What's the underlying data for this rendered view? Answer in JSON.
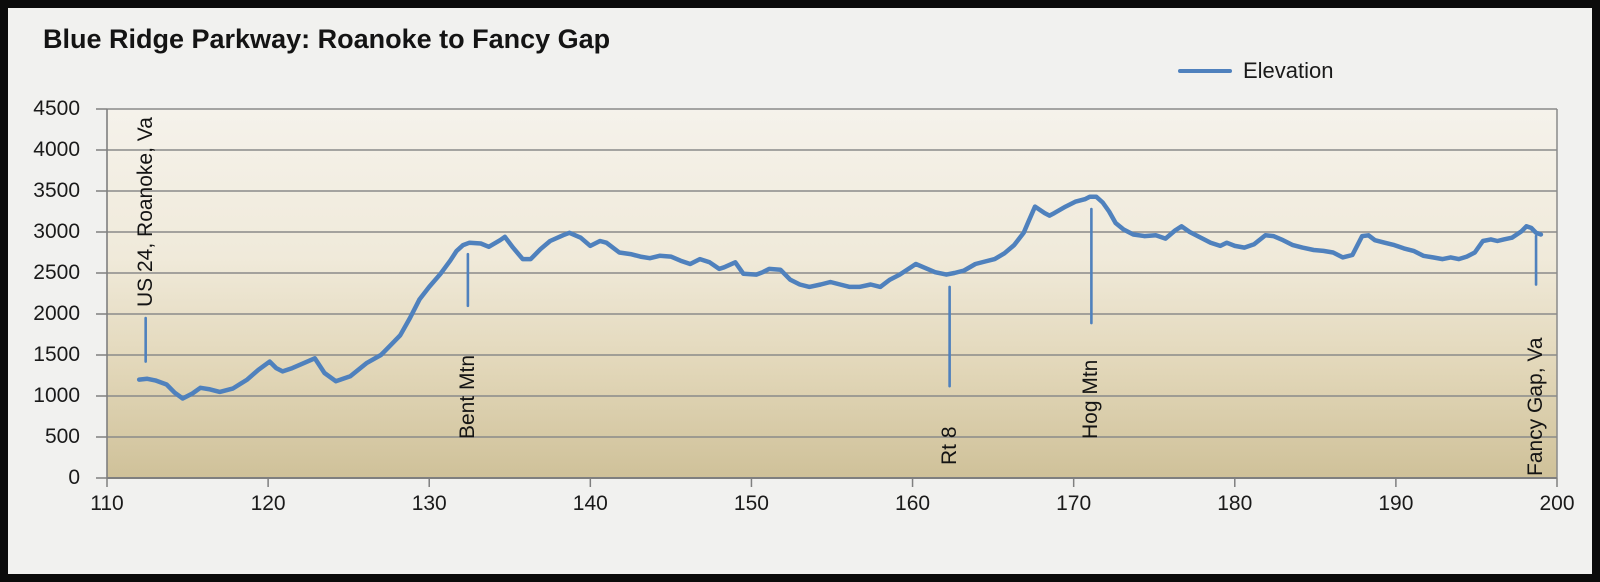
{
  "window": {
    "title": "Blue Ridge Parkway: Roanoke to Fancy Gap"
  },
  "legend": {
    "label": "Elevation"
  },
  "chart_data": {
    "type": "line",
    "title": "Blue Ridge Parkway: Roanoke to Fancy Gap",
    "xlabel": "",
    "ylabel": "",
    "xlim": [
      110,
      200
    ],
    "ylim": [
      0,
      4500
    ],
    "x_ticks": [
      110,
      120,
      130,
      140,
      150,
      160,
      170,
      180,
      190,
      200
    ],
    "y_ticks": [
      0,
      500,
      1000,
      1500,
      2000,
      2500,
      3000,
      3500,
      4000,
      4500
    ],
    "grid": "horizontal",
    "legend": {
      "entries": [
        "Elevation"
      ],
      "position": "top-right"
    },
    "series": [
      {
        "name": "Elevation",
        "color": "#4F81BD",
        "points": [
          [
            112.0,
            1200
          ],
          [
            112.5,
            1210
          ],
          [
            113.0,
            1190
          ],
          [
            113.7,
            1140
          ],
          [
            114.2,
            1040
          ],
          [
            114.7,
            970
          ],
          [
            115.3,
            1030
          ],
          [
            115.8,
            1100
          ],
          [
            116.4,
            1080
          ],
          [
            117.0,
            1050
          ],
          [
            117.8,
            1090
          ],
          [
            118.7,
            1200
          ],
          [
            119.4,
            1320
          ],
          [
            120.1,
            1420
          ],
          [
            120.5,
            1340
          ],
          [
            120.9,
            1300
          ],
          [
            121.5,
            1340
          ],
          [
            122.2,
            1400
          ],
          [
            122.9,
            1460
          ],
          [
            123.5,
            1280
          ],
          [
            124.2,
            1180
          ],
          [
            125.1,
            1240
          ],
          [
            126.1,
            1400
          ],
          [
            127.0,
            1500
          ],
          [
            127.6,
            1620
          ],
          [
            128.2,
            1740
          ],
          [
            128.8,
            1950
          ],
          [
            129.4,
            2180
          ],
          [
            130.0,
            2330
          ],
          [
            130.7,
            2490
          ],
          [
            131.3,
            2650
          ],
          [
            131.7,
            2770
          ],
          [
            132.1,
            2840
          ],
          [
            132.5,
            2870
          ],
          [
            133.2,
            2860
          ],
          [
            133.7,
            2820
          ],
          [
            134.4,
            2900
          ],
          [
            134.7,
            2940
          ],
          [
            135.2,
            2810
          ],
          [
            135.8,
            2670
          ],
          [
            136.3,
            2670
          ],
          [
            136.9,
            2790
          ],
          [
            137.5,
            2890
          ],
          [
            138.3,
            2960
          ],
          [
            138.7,
            2990
          ],
          [
            139.4,
            2930
          ],
          [
            140.0,
            2830
          ],
          [
            140.6,
            2890
          ],
          [
            141.0,
            2870
          ],
          [
            141.8,
            2750
          ],
          [
            142.5,
            2730
          ],
          [
            143.1,
            2700
          ],
          [
            143.7,
            2680
          ],
          [
            144.3,
            2710
          ],
          [
            145.0,
            2700
          ],
          [
            145.6,
            2650
          ],
          [
            146.2,
            2610
          ],
          [
            146.8,
            2670
          ],
          [
            147.4,
            2630
          ],
          [
            148.0,
            2550
          ],
          [
            148.3,
            2570
          ],
          [
            149.0,
            2630
          ],
          [
            149.5,
            2490
          ],
          [
            150.3,
            2480
          ],
          [
            150.7,
            2510
          ],
          [
            151.1,
            2550
          ],
          [
            151.8,
            2540
          ],
          [
            152.4,
            2420
          ],
          [
            153.0,
            2360
          ],
          [
            153.6,
            2330
          ],
          [
            154.3,
            2360
          ],
          [
            154.9,
            2390
          ],
          [
            155.5,
            2360
          ],
          [
            156.1,
            2330
          ],
          [
            156.7,
            2330
          ],
          [
            157.4,
            2360
          ],
          [
            158.0,
            2330
          ],
          [
            158.6,
            2420
          ],
          [
            159.2,
            2480
          ],
          [
            159.9,
            2570
          ],
          [
            160.2,
            2610
          ],
          [
            160.8,
            2560
          ],
          [
            161.4,
            2510
          ],
          [
            162.1,
            2480
          ],
          [
            162.6,
            2500
          ],
          [
            163.2,
            2530
          ],
          [
            163.9,
            2610
          ],
          [
            164.5,
            2640
          ],
          [
            165.1,
            2670
          ],
          [
            165.7,
            2740
          ],
          [
            166.3,
            2840
          ],
          [
            166.9,
            2990
          ],
          [
            167.2,
            3130
          ],
          [
            167.6,
            3310
          ],
          [
            168.2,
            3230
          ],
          [
            168.5,
            3200
          ],
          [
            168.8,
            3230
          ],
          [
            169.5,
            3310
          ],
          [
            170.1,
            3370
          ],
          [
            170.7,
            3400
          ],
          [
            171.0,
            3430
          ],
          [
            171.4,
            3430
          ],
          [
            171.8,
            3360
          ],
          [
            172.2,
            3250
          ],
          [
            172.6,
            3110
          ],
          [
            173.1,
            3030
          ],
          [
            173.7,
            2970
          ],
          [
            174.4,
            2950
          ],
          [
            175.1,
            2960
          ],
          [
            175.7,
            2920
          ],
          [
            176.3,
            3020
          ],
          [
            176.7,
            3070
          ],
          [
            177.2,
            3000
          ],
          [
            177.9,
            2930
          ],
          [
            178.5,
            2870
          ],
          [
            179.1,
            2830
          ],
          [
            179.5,
            2870
          ],
          [
            180.0,
            2830
          ],
          [
            180.6,
            2810
          ],
          [
            181.2,
            2850
          ],
          [
            181.9,
            2960
          ],
          [
            182.4,
            2950
          ],
          [
            183.0,
            2900
          ],
          [
            183.6,
            2840
          ],
          [
            184.2,
            2810
          ],
          [
            184.9,
            2780
          ],
          [
            185.5,
            2770
          ],
          [
            186.1,
            2750
          ],
          [
            186.7,
            2690
          ],
          [
            187.3,
            2720
          ],
          [
            187.9,
            2950
          ],
          [
            188.3,
            2960
          ],
          [
            188.7,
            2900
          ],
          [
            189.3,
            2870
          ],
          [
            189.9,
            2840
          ],
          [
            190.5,
            2800
          ],
          [
            191.1,
            2770
          ],
          [
            191.7,
            2710
          ],
          [
            192.3,
            2690
          ],
          [
            192.9,
            2670
          ],
          [
            193.4,
            2690
          ],
          [
            193.9,
            2670
          ],
          [
            194.4,
            2700
          ],
          [
            194.9,
            2750
          ],
          [
            195.4,
            2890
          ],
          [
            195.9,
            2910
          ],
          [
            196.3,
            2890
          ],
          [
            196.7,
            2910
          ],
          [
            197.2,
            2930
          ],
          [
            197.8,
            3010
          ],
          [
            198.1,
            3070
          ],
          [
            198.4,
            3050
          ],
          [
            198.7,
            2990
          ],
          [
            199.0,
            2970
          ]
        ]
      }
    ],
    "annotations": [
      {
        "label": "US 24, Roanoke, Va",
        "milepost": 112.4,
        "line_top_ft": 1950,
        "line_bottom_ft": 1420,
        "text_anchor_ft": 2080
      },
      {
        "label": "Bent Mtn",
        "milepost": 132.4,
        "line_top_ft": 2730,
        "line_bottom_ft": 2100,
        "text_anchor_ft": 480
      },
      {
        "label": "Rt 8",
        "milepost": 162.3,
        "line_top_ft": 2330,
        "line_bottom_ft": 1120,
        "text_anchor_ft": 160
      },
      {
        "label": "Hog Mtn",
        "milepost": 171.1,
        "line_top_ft": 3280,
        "line_bottom_ft": 1890,
        "text_anchor_ft": 480
      },
      {
        "label": "Fancy Gap, Va",
        "milepost": 198.7,
        "line_top_ft": 2950,
        "line_bottom_ft": 2360,
        "text_anchor_ft": 20
      }
    ],
    "colors": {
      "line": "#4F81BD",
      "callout": "#4F81BD",
      "gridline": "#8a8a8a",
      "axis": "#7f7f7f",
      "text": "#1a1a1a",
      "outer_background": "#f1f1ef",
      "frame_border": "#0b0b0b",
      "plot_bg_top": "#f5f2eb",
      "plot_bg_mid1": "#f0eada",
      "plot_bg_mid2": "#e2d7b9",
      "plot_bg_bottom": "#cfc199"
    }
  }
}
